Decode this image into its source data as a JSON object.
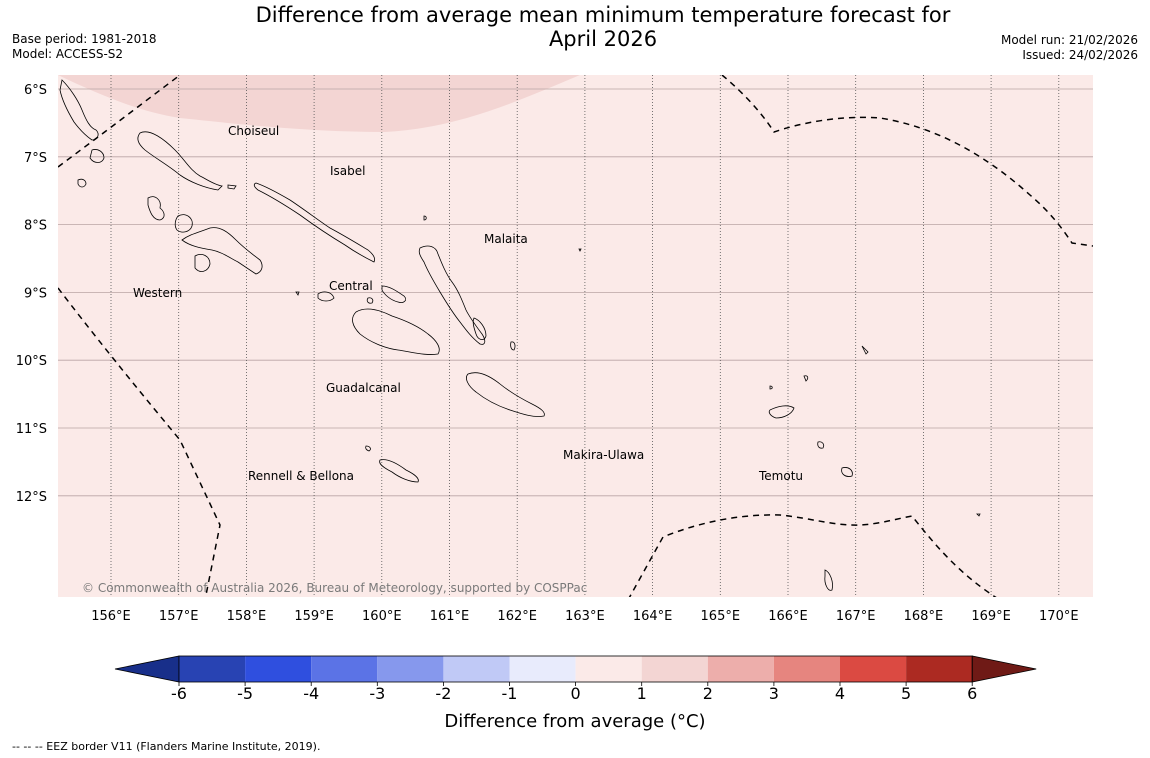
{
  "title": {
    "line1": "Difference from average mean minimum temperature forecast for",
    "line2": "April 2026"
  },
  "meta": {
    "base_period": "Base period: 1981-2018",
    "model": "Model: ACCESS-S2",
    "model_run": "Model run: 21/02/2026",
    "issued": "Issued: 24/02/2026"
  },
  "map": {
    "lat_labels": [
      "6°S",
      "7°S",
      "8°S",
      "9°S",
      "10°S",
      "11°S",
      "12°S"
    ],
    "lon_labels": [
      "156°E",
      "157°E",
      "158°E",
      "159°E",
      "160°E",
      "161°E",
      "162°E",
      "163°E",
      "164°E",
      "165°E",
      "166°E",
      "167°E",
      "168°E",
      "169°E",
      "170°E"
    ],
    "places": [
      "Choiseul",
      "Isabel",
      "Malaita",
      "Western",
      "Central",
      "Guadalcanal",
      "Makira-Ulawa",
      "Rennell & Bellona",
      "Temotu"
    ],
    "copyright": "© Commonwealth of Australia 2026, Bureau of Meteorology, supported by COSPPac",
    "background_color": "#fbeae8",
    "anomaly_patch_color": "#f3d5d3",
    "background_range": "0 to 1",
    "patch_range": "1 to 2"
  },
  "colorbar": {
    "ticks": [
      "-6",
      "-5",
      "-4",
      "-3",
      "-2",
      "-1",
      "0",
      "1",
      "2",
      "3",
      "4",
      "5",
      "6"
    ],
    "colors": [
      "#182f8a",
      "#2843b3",
      "#2f4fdf",
      "#5b73e6",
      "#8698ed",
      "#c0c9f6",
      "#e8ebfc",
      "#fbeae8",
      "#f3d5d3",
      "#edaeab",
      "#e6857f",
      "#db4a42",
      "#ac2a22",
      "#6f1a16"
    ],
    "label": "Difference from average (",
    "label_unit": "°C",
    "label_close": ")"
  },
  "footnote": "--  --  -- EEZ border V11 (Flanders Marine Institute, 2019)."
}
